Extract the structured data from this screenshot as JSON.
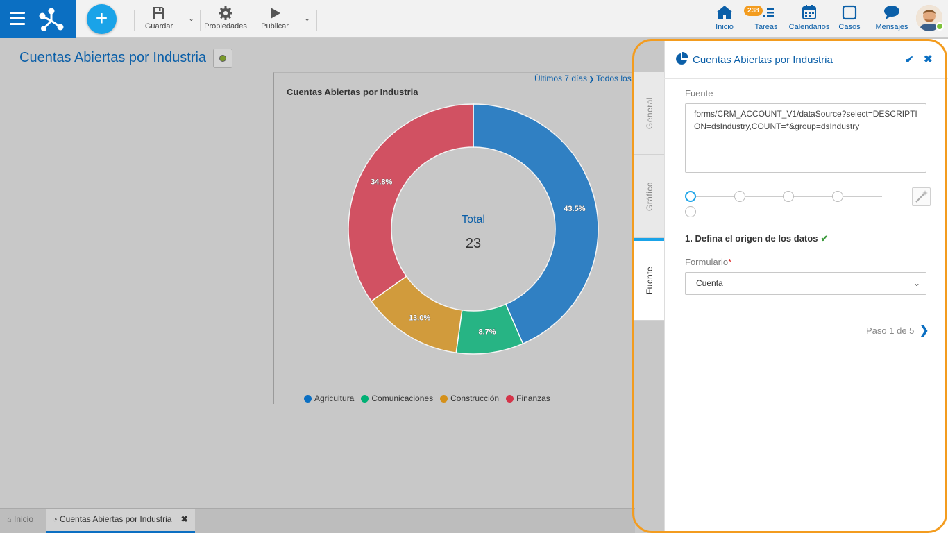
{
  "toolbar": {
    "save_label": "Guardar",
    "properties_label": "Propiedades",
    "publish_label": "Publicar",
    "add_icon": "plus-icon"
  },
  "nav": {
    "home": "Inicio",
    "tasks": "Tareas",
    "tasks_badge": "238",
    "calendars": "Calendarios",
    "cases": "Casos",
    "messages": "Mensajes"
  },
  "page": {
    "title": "Cuentas Abiertas por Industria"
  },
  "chart_filters": {
    "period": "Últimos 7 días",
    "scope": "Todos los"
  },
  "chart_data": {
    "type": "pie",
    "title": "Cuentas Abiertas por Industria",
    "center_label": "Total",
    "center_value": "23",
    "slices": [
      {
        "label": "Agricultura",
        "value": 43.5,
        "value_label": "43.5%",
        "color": "#0b6fc2"
      },
      {
        "label": "Comunicaciones",
        "value": 8.7,
        "value_label": "8.7%",
        "color": "#00b074"
      },
      {
        "label": "Construcción",
        "value": 13.0,
        "value_label": "13.0%",
        "color": "#d4901a"
      },
      {
        "label": "Finanzas",
        "value": 34.8,
        "value_label": "34.8%",
        "color": "#d43449"
      }
    ],
    "legend_position": "bottom"
  },
  "bottom_tabs": [
    {
      "label": "Inicio"
    },
    {
      "label": "Cuentas Abiertas por Industria"
    }
  ],
  "panel": {
    "title": "Cuentas Abiertas por Industria",
    "tabs": {
      "general": "General",
      "chart": "Gráfico",
      "source": "Fuente"
    },
    "source_label": "Fuente",
    "source_value": "forms/CRM_ACCOUNT_V1/dataSource?select=DESCRIPTION=dsIndustry,COUNT=*&group=dsIndustry",
    "step_title": "1. Defina el origen de los datos",
    "form_label": "Formulario",
    "required_mark": "*",
    "form_value": "Cuenta",
    "step_count": "Paso 1 de 5"
  }
}
